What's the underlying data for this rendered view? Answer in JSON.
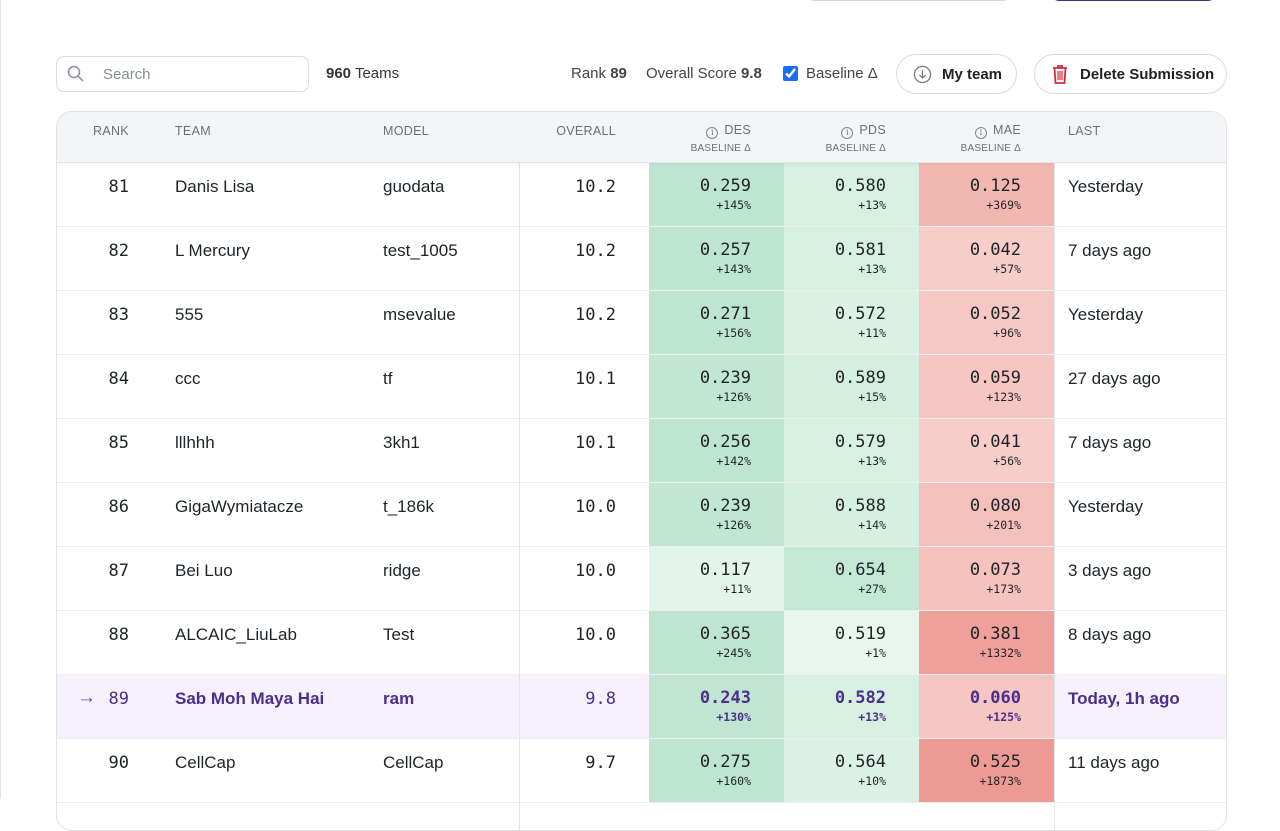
{
  "toolbar": {
    "search_placeholder": "Search",
    "teams_count": "960",
    "teams_label": "Teams",
    "rank_label": "Rank",
    "rank_value": "89",
    "score_label": "Overall Score",
    "score_value": "9.8",
    "baseline_label": "Baseline Δ",
    "baseline_checked": true,
    "my_team_label": "My team",
    "delete_label": "Delete Submission"
  },
  "columns": {
    "rank": "RANK",
    "team": "TEAM",
    "model": "MODEL",
    "overall": "OVERALL",
    "des": "DES",
    "pds": "PDS",
    "mae": "MAE",
    "baseline": "BASELINE Δ",
    "last": "LAST"
  },
  "colors": {
    "accent": "#4b2e8a",
    "highlight_bg": "#f7f1fd",
    "good": "#bde5d1",
    "bad": "#ef9d98"
  },
  "rows": [
    {
      "rank": "81",
      "team": "Danis Lisa",
      "model": "guodata",
      "overall": "10.2",
      "des": "0.259",
      "des_d": "+145%",
      "pds": "0.580",
      "pds_d": "+13%",
      "mae": "0.125",
      "mae_d": "+369%",
      "last": "Yesterday"
    },
    {
      "rank": "82",
      "team": "L Mercury",
      "model": "test_1005",
      "overall": "10.2",
      "des": "0.257",
      "des_d": "+143%",
      "pds": "0.581",
      "pds_d": "+13%",
      "mae": "0.042",
      "mae_d": "+57%",
      "last": "7 days ago"
    },
    {
      "rank": "83",
      "team": "555",
      "model": "msevalue",
      "overall": "10.2",
      "des": "0.271",
      "des_d": "+156%",
      "pds": "0.572",
      "pds_d": "+11%",
      "mae": "0.052",
      "mae_d": "+96%",
      "last": "Yesterday"
    },
    {
      "rank": "84",
      "team": "ccc",
      "model": "tf",
      "overall": "10.1",
      "des": "0.239",
      "des_d": "+126%",
      "pds": "0.589",
      "pds_d": "+15%",
      "mae": "0.059",
      "mae_d": "+123%",
      "last": "27 days ago"
    },
    {
      "rank": "85",
      "team": "lllhhh",
      "model": "3kh1",
      "overall": "10.1",
      "des": "0.256",
      "des_d": "+142%",
      "pds": "0.579",
      "pds_d": "+13%",
      "mae": "0.041",
      "mae_d": "+56%",
      "last": "7 days ago"
    },
    {
      "rank": "86",
      "team": "GigaWymiatacze",
      "model": "t_186k",
      "overall": "10.0",
      "des": "0.239",
      "des_d": "+126%",
      "pds": "0.588",
      "pds_d": "+14%",
      "mae": "0.080",
      "mae_d": "+201%",
      "last": "Yesterday"
    },
    {
      "rank": "87",
      "team": "Bei Luo",
      "model": "ridge",
      "overall": "10.0",
      "des": "0.117",
      "des_d": "+11%",
      "pds": "0.654",
      "pds_d": "+27%",
      "mae": "0.073",
      "mae_d": "+173%",
      "last": "3 days ago"
    },
    {
      "rank": "88",
      "team": "ALCAIC_LiuLab",
      "model": "Test",
      "overall": "10.0",
      "des": "0.365",
      "des_d": "+245%",
      "pds": "0.519",
      "pds_d": "+1%",
      "mae": "0.381",
      "mae_d": "+1332%",
      "last": "8 days ago"
    },
    {
      "rank": "89",
      "team": "Sab Moh Maya Hai",
      "model": "ram",
      "overall": "9.8",
      "des": "0.243",
      "des_d": "+130%",
      "pds": "0.582",
      "pds_d": "+13%",
      "mae": "0.060",
      "mae_d": "+125%",
      "last": "Today, 1h ago",
      "is_my_team": true
    },
    {
      "rank": "90",
      "team": "CellCap",
      "model": "CellCap",
      "overall": "9.7",
      "des": "0.275",
      "des_d": "+160%",
      "pds": "0.564",
      "pds_d": "+10%",
      "mae": "0.525",
      "mae_d": "+1873%",
      "last": "11 days ago"
    }
  ]
}
